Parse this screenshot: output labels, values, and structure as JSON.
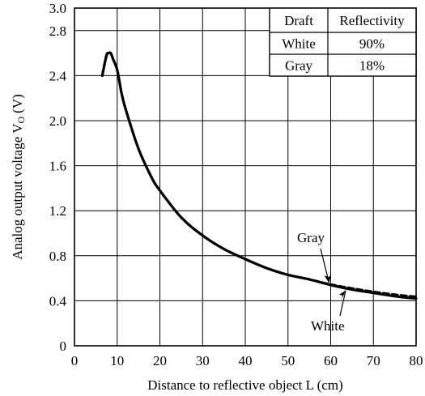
{
  "chart_data": {
    "type": "line",
    "title": "",
    "xlabel": "Distance to reflective object L (cm)",
    "ylabel": "Analog output voltage V",
    "ylabel_subscript": "O",
    "ylabel_unit": "(V)",
    "xlim": [
      0,
      80
    ],
    "ylim": [
      0,
      3.0
    ],
    "x_ticks": [
      0,
      10,
      20,
      30,
      40,
      50,
      60,
      70,
      80
    ],
    "y_ticks": [
      0,
      0.4,
      0.8,
      1.2,
      1.6,
      2.0,
      2.4,
      2.8,
      3.0
    ],
    "y_tick_labels": [
      "0",
      "0.4",
      "0.8",
      "1.2",
      "1.6",
      "2.0",
      "2.4",
      "2.8",
      "3.0"
    ],
    "grid": true,
    "series": [
      {
        "name": "White",
        "style": "solid",
        "color": "#000000",
        "x": [
          6.5,
          7.5,
          8,
          8.5,
          9,
          10,
          11,
          12,
          15,
          18,
          20,
          25,
          30,
          35,
          40,
          45,
          50,
          55,
          60,
          65,
          70,
          75,
          80
        ],
        "y": [
          2.4,
          2.58,
          2.6,
          2.6,
          2.55,
          2.45,
          2.25,
          2.1,
          1.75,
          1.5,
          1.38,
          1.14,
          0.98,
          0.86,
          0.77,
          0.69,
          0.63,
          0.59,
          0.54,
          0.5,
          0.47,
          0.44,
          0.42
        ]
      },
      {
        "name": "Gray",
        "style": "dashed",
        "color": "#000000",
        "x": [
          6.5,
          7.5,
          8,
          8.5,
          9,
          10,
          11,
          12,
          15,
          18,
          20,
          25,
          30,
          35,
          40,
          45,
          50,
          55,
          60,
          65,
          70,
          75,
          80
        ],
        "y": [
          2.4,
          2.58,
          2.6,
          2.6,
          2.55,
          2.45,
          2.25,
          2.1,
          1.75,
          1.5,
          1.38,
          1.14,
          0.98,
          0.86,
          0.77,
          0.69,
          0.63,
          0.59,
          0.545,
          0.51,
          0.48,
          0.455,
          0.435
        ]
      }
    ],
    "legend_table": {
      "placement": "top-right",
      "headers": [
        "Draft",
        "Reflectivity"
      ],
      "rows": [
        [
          "White",
          "90%"
        ],
        [
          "Gray",
          "18%"
        ]
      ]
    },
    "annotations": [
      {
        "text": "Gray",
        "target_series": "Gray",
        "x": 60,
        "y": 0.545
      },
      {
        "text": "White",
        "target_series": "White",
        "x": 63.5,
        "y": 0.52
      }
    ]
  }
}
